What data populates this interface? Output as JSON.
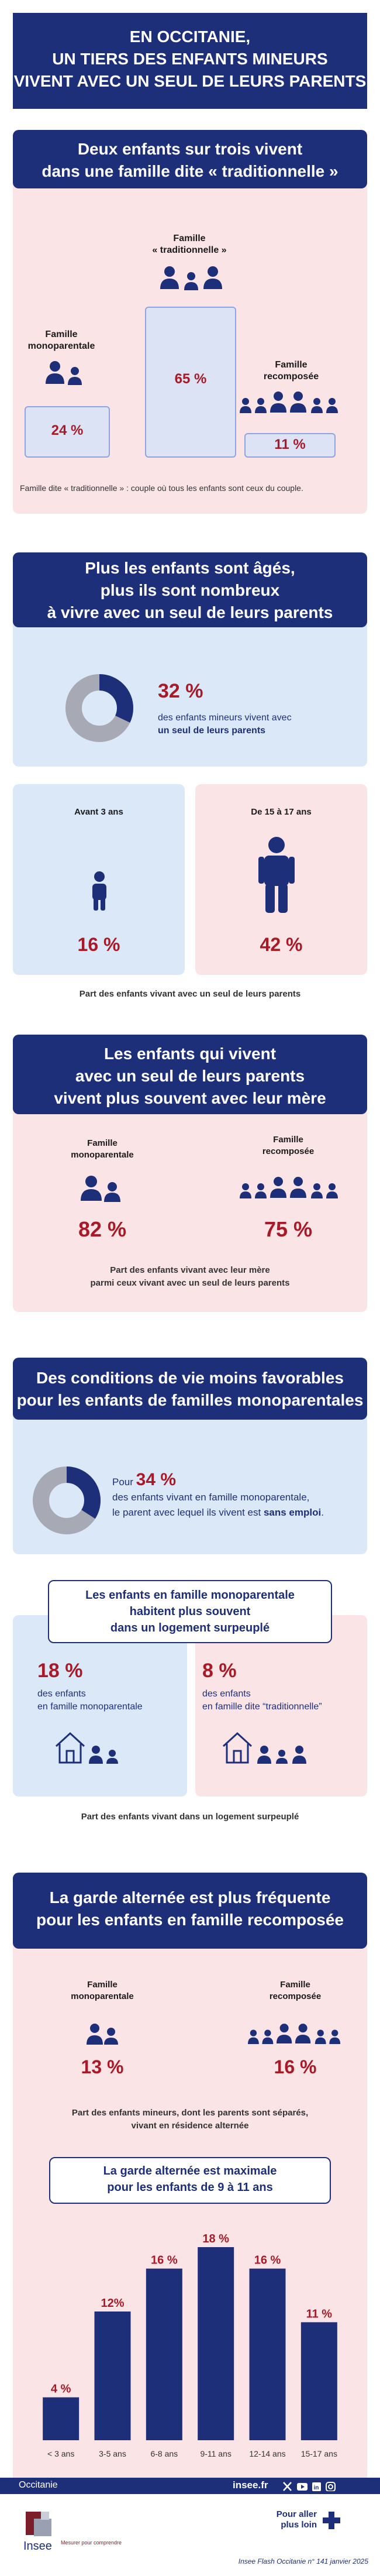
{
  "title": {
    "line1": "EN OCCITANIE,",
    "line2": "UN TIERS DES ENFANTS MINEURS",
    "line3": "VIVENT AVEC UN SEUL DE LEURS PARENTS"
  },
  "s1": {
    "header1": "Deux enfants sur trois vivent",
    "header2": "dans une famille dite « traditionnelle »",
    "trad_label1": "Famille",
    "trad_label2": "« traditionnelle »",
    "trad_value": "65 %",
    "mono_label1": "Famille",
    "mono_label2": "monoparentale",
    "mono_value": "24 %",
    "recomp_label1": "Famille",
    "recomp_label2": "recomposée",
    "recomp_value": "11 %",
    "footnote": "Famille dite « traditionnelle » : couple où tous les enfants sont ceux du couple."
  },
  "s2": {
    "header1": "Plus les enfants sont âgés,",
    "header2": "plus ils sont nombreux",
    "header3": "à vivre avec un seul de leurs parents",
    "value": "32 %",
    "donut_fraction": 0.32,
    "text1": "des enfants mineurs vivent  avec",
    "text2": "un seul de leurs parents",
    "young_label": "Avant 3 ans",
    "young_value": "16 %",
    "old_label": "De 15 à 17 ans",
    "old_value": "42 %",
    "caption": "Part des enfants vivant avec un seul de leurs parents"
  },
  "s3": {
    "header1": "Les enfants qui vivent",
    "header2": "avec un seul de leurs parents",
    "header3": "vivent plus souvent avec leur mère",
    "mono_label1": "Famille",
    "mono_label2": "monoparentale",
    "mono_value": "82 %",
    "recomp_label1": "Famille",
    "recomp_label2": "recomposée",
    "recomp_value": "75 %",
    "caption1": "Part des enfants vivant avec leur mère",
    "caption2": "parmi ceux vivant avec un seul de leurs parents"
  },
  "s4": {
    "header1": "Des conditions de vie moins favorables",
    "header2": "pour les enfants de familles monoparentales",
    "pour": "Pour",
    "value": "34 %",
    "donut_fraction": 0.34,
    "text1": "des enfants vivant en famille monoparentale,",
    "text2a": "le parent avec lequel ils vivent est",
    "text2b": "sans emploi",
    "text2c": "."
  },
  "s5": {
    "header1": "Les enfants en famille monoparentale",
    "header2": "habitent plus souvent",
    "header3": "dans un logement surpeuplé",
    "left_value": "18 %",
    "left_text1": "des enfants",
    "left_text2": "en famille monoparentale",
    "right_value": "8 %",
    "right_text1": "des enfants",
    "right_text2": "en famille dite “traditionnelle”",
    "caption": "Part des enfants vivant dans un logement surpeuplé"
  },
  "s6": {
    "header1": "La garde alternée est plus fréquente",
    "header2": "pour les enfants en famille recomposée",
    "mono_label1": "Famille",
    "mono_label2": "monoparentale",
    "mono_value": "13 %",
    "recomp_label1": "Famille",
    "recomp_label2": "recomposée",
    "recomp_value": "16 %",
    "caption1": "Part des enfants mineurs, dont les parents sont séparés,",
    "caption2": "vivant en résidence alternée"
  },
  "chart_data": {
    "type": "bar",
    "title": "La garde alternée est maximale pour les enfants de 9 à 11 ans",
    "title1": "La garde alternée est maximale",
    "title2": "pour les enfants de 9 à 11 ans",
    "categories": [
      "< 3 ans",
      "3-5 ans",
      "6-8 ans",
      "9-11 ans",
      "12-14 ans",
      "15-17 ans"
    ],
    "values": [
      4,
      12,
      16,
      18,
      16,
      11
    ],
    "value_labels": [
      "4 %",
      "12%",
      "16 %",
      "18 %",
      "16 %",
      "11 %"
    ],
    "ylim": [
      0,
      18
    ],
    "grid": false
  },
  "footer": {
    "region": "Occitanie",
    "site": "insee.fr",
    "brand": "Insee",
    "tagline": "Mesurer pour comprendre",
    "more1": "Pour aller",
    "more2": "plus loin",
    "ref": "Insee Flash Occitanie n° 141 janvier 2025"
  },
  "colors": {
    "navy": "#1e2f7a",
    "red": "#a81a28",
    "pink": "#fbe4e6",
    "blue": "#dbe8f8"
  }
}
